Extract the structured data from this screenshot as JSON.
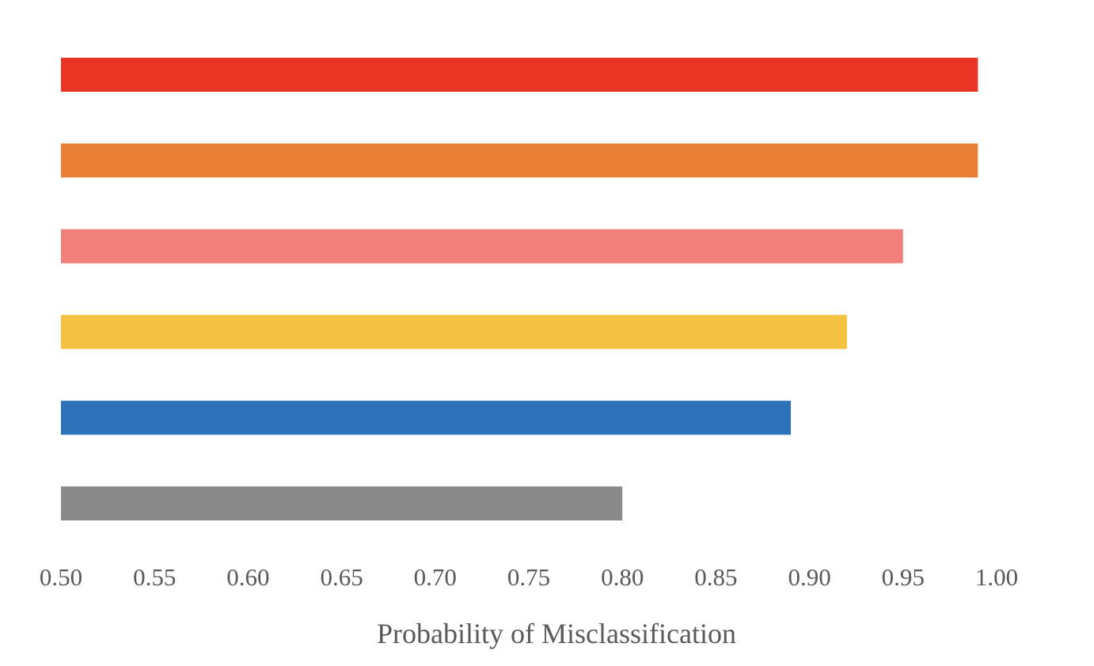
{
  "chart_data": {
    "type": "bar",
    "orientation": "horizontal",
    "title": "",
    "xlabel": "Probability of Misclassification",
    "ylabel": "",
    "xlim": [
      0.5,
      1.0
    ],
    "x_ticks": [
      "0.50",
      "0.55",
      "0.60",
      "0.65",
      "0.70",
      "0.75",
      "0.80",
      "0.85",
      "0.90",
      "0.95",
      "1.00"
    ],
    "grid": false,
    "legend": "none",
    "bars": [
      {
        "value": 0.99,
        "color": "#e93323"
      },
      {
        "value": 0.99,
        "color": "#e98234"
      },
      {
        "value": 0.95,
        "color": "#f1807b"
      },
      {
        "value": 0.92,
        "color": "#f5c143"
      },
      {
        "value": 0.89,
        "color": "#2d72b8"
      },
      {
        "value": 0.8,
        "color": "#8a8a8a"
      }
    ]
  }
}
